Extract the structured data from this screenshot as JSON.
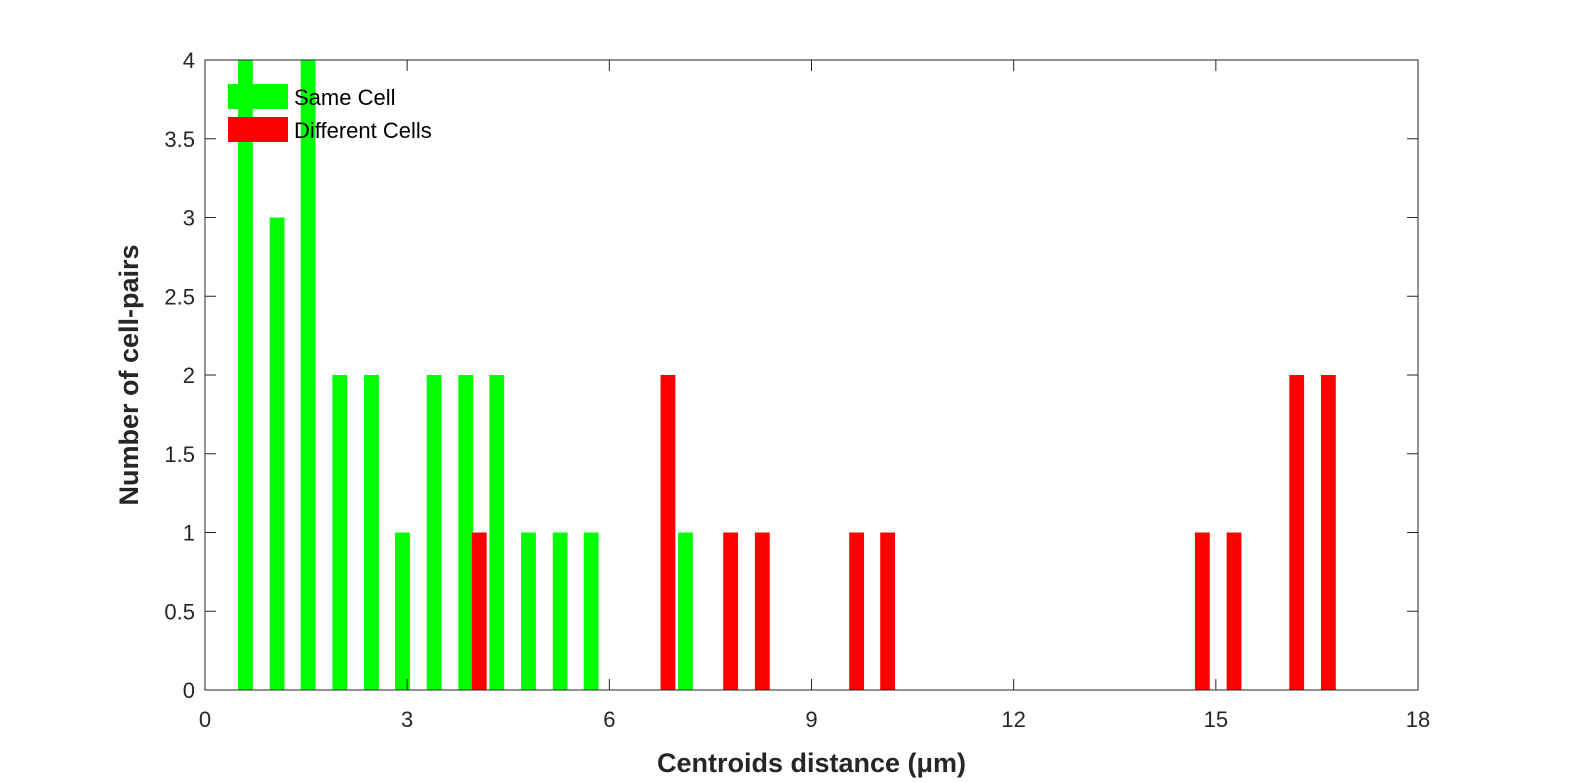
{
  "chart_data": {
    "type": "bar",
    "xlabel": "Centroids distance (μm)",
    "ylabel": "Number of cell-pairs",
    "xlim": [
      0,
      18
    ],
    "ylim": [
      0,
      4
    ],
    "xticks": [
      0,
      3,
      6,
      9,
      12,
      15,
      18
    ],
    "yticks": [
      0,
      0.5,
      1,
      1.5,
      2,
      2.5,
      3,
      3.5,
      4
    ],
    "bar_width": 0.22,
    "grid": false,
    "legend_position": "top-left",
    "series": [
      {
        "name": "Same Cell",
        "color": "#00ff00",
        "x": [
          0.6,
          1.07,
          1.53,
          2.0,
          2.47,
          2.93,
          3.4,
          3.87,
          4.33,
          4.8,
          5.27,
          5.73,
          7.13
        ],
        "values": [
          4,
          3,
          4,
          2,
          2,
          1,
          2,
          2,
          2,
          1,
          1,
          1,
          1
        ]
      },
      {
        "name": "Different Cells",
        "color": "#ff0000",
        "x": [
          4.07,
          6.87,
          7.8,
          8.27,
          9.67,
          10.13,
          14.8,
          15.27,
          16.2,
          16.67
        ],
        "values": [
          1,
          2,
          1,
          1,
          1,
          1,
          1,
          1,
          2,
          2
        ]
      }
    ]
  }
}
